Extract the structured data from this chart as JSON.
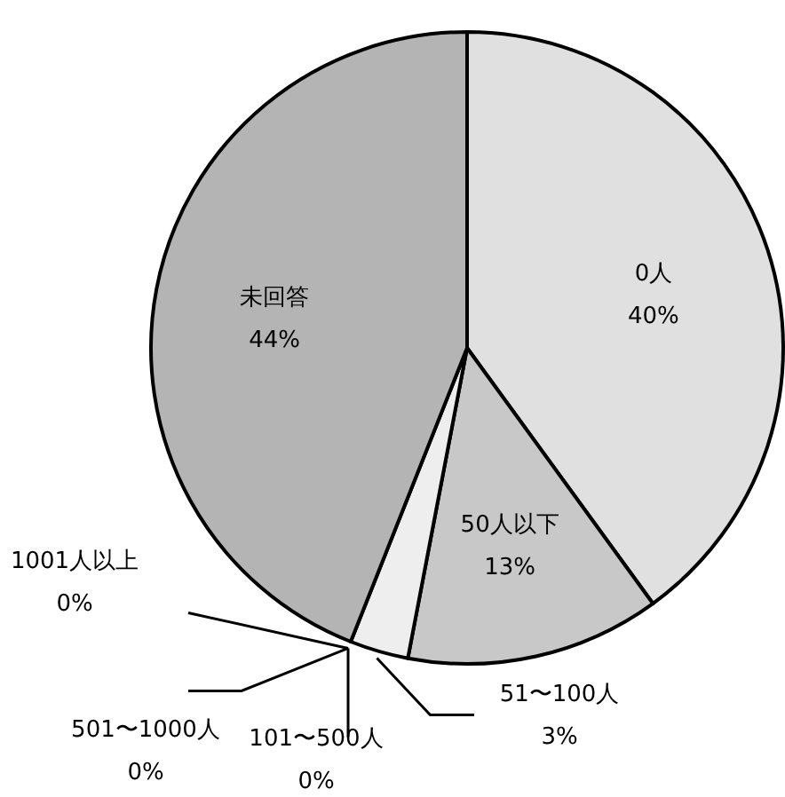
{
  "chart_data": {
    "type": "pie",
    "categories": [
      "0人",
      "50人以下",
      "51〜100人",
      "101〜500人",
      "501〜1000人",
      "1001人以上",
      "未回答"
    ],
    "values": [
      40,
      13,
      3,
      0,
      0,
      0,
      44
    ],
    "value_labels": [
      "40%",
      "13%",
      "3%",
      "0%",
      "0%",
      "0%",
      "44%"
    ],
    "colors": [
      "#e0e0e0",
      "#c8c8c8",
      "#eeeeee",
      null,
      null,
      null,
      "#b4b4b4"
    ]
  }
}
